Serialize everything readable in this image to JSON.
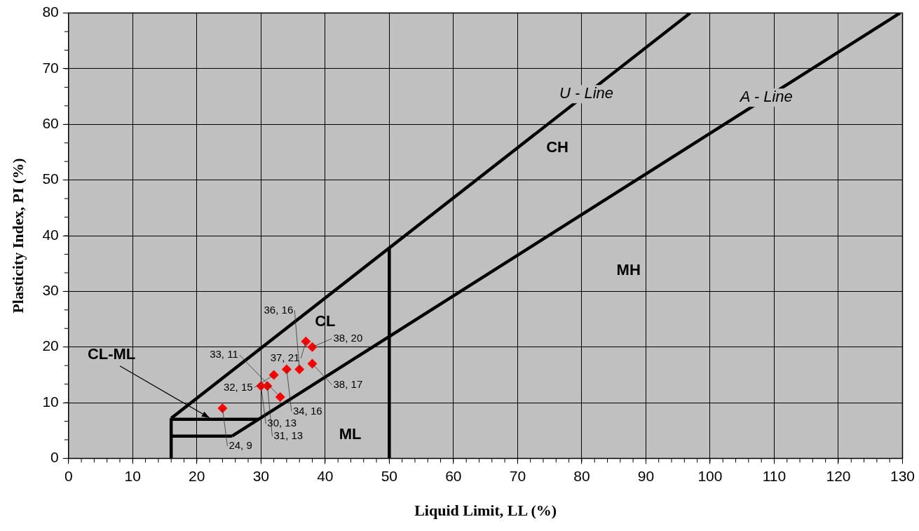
{
  "chart_data": {
    "type": "scatter",
    "xlabel": "Liquid Limit, LL (%)",
    "ylabel": "Plasticity Index, PI (%)",
    "xlim": [
      0,
      130
    ],
    "xticks": [
      0,
      10,
      20,
      30,
      40,
      50,
      60,
      70,
      80,
      90,
      100,
      110,
      120,
      130
    ],
    "ylim": [
      0,
      80
    ],
    "yticks": [
      0,
      10,
      20,
      30,
      40,
      50,
      60,
      70,
      80
    ],
    "grid": true,
    "legend": false,
    "series": [
      {
        "color": "#ff0000",
        "marker": "diamond",
        "x": [
          24,
          33,
          30,
          31,
          32,
          34,
          36,
          38,
          37,
          38
        ],
        "values": [
          9,
          11,
          13,
          13,
          15,
          16,
          16,
          17,
          21,
          20
        ],
        "value_labels": [
          "24, 9",
          "33, 11",
          "30, 13",
          "31, 13",
          "32, 15",
          "34, 16",
          "36, 16",
          "38, 17",
          "37, 21",
          "38, 20"
        ]
      },
      {
        "type": "line",
        "name": "U - Line",
        "color": "#000000",
        "marker": "none",
        "x": [
          16,
          96.9
        ],
        "values": [
          7.2,
          80
        ]
      },
      {
        "type": "line",
        "name": "A - Line",
        "color": "#000000",
        "marker": "none",
        "x": [
          25.5,
          129.6
        ],
        "values": [
          4,
          80
        ]
      },
      {
        "type": "line",
        "color": "#000000",
        "marker": "none",
        "x": [
          50,
          50
        ],
        "values": [
          0,
          37.8
        ]
      },
      {
        "type": "line",
        "color": "#000000",
        "marker": "none",
        "x": [
          16,
          16
        ],
        "values": [
          0,
          7.2
        ]
      },
      {
        "type": "line",
        "color": "#000000",
        "marker": "none",
        "x": [
          16,
          29.6
        ],
        "values": [
          7,
          7
        ]
      },
      {
        "type": "line",
        "color": "#000000",
        "marker": "none",
        "x": [
          16,
          25.5
        ],
        "values": [
          4,
          4
        ]
      }
    ],
    "annotations": [
      "CH",
      "MH",
      "CL",
      "ML",
      {
        "text": "CL-ML",
        "x": 22,
        "y": 7
      }
    ]
  }
}
